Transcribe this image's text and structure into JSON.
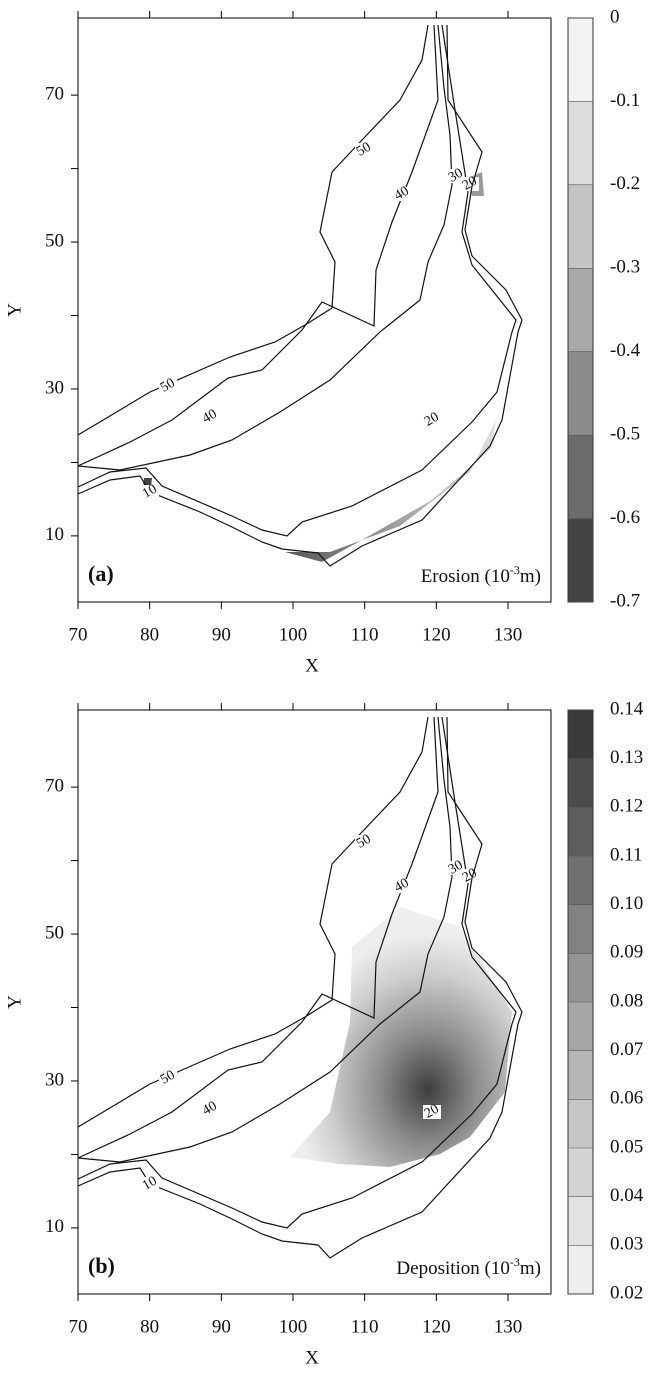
{
  "chart_data": [
    {
      "type": "contour",
      "panel_label": "(a)",
      "annotation": {
        "text": "Erosion (10",
        "sup": "-3",
        "unit": "m)"
      },
      "xlabel": "X",
      "ylabel": "Y",
      "xlim": [
        70,
        136
      ],
      "ylim": [
        1,
        80.5
      ],
      "xticks": [
        70,
        80,
        90,
        100,
        110,
        120,
        130
      ],
      "yticks": [
        10,
        30,
        50,
        70
      ],
      "yminorticks": [
        20,
        40,
        60
      ],
      "contour_levels": [
        50,
        40,
        30,
        20,
        10
      ],
      "shading": "erosion",
      "colorbar": {
        "ticks": [
          0,
          -0.1,
          -0.2,
          -0.3,
          -0.4,
          -0.5,
          -0.6,
          -0.7
        ],
        "colors": [
          "#f2f2f2",
          "#dcdcdc",
          "#c4c4c4",
          "#a9a9a9",
          "#8c8c8c",
          "#6c6c6c",
          "#444444"
        ]
      }
    },
    {
      "type": "contour",
      "panel_label": "(b)",
      "annotation": {
        "text": "Deposition (10",
        "sup": "-3",
        "unit": "m)"
      },
      "xlabel": "X",
      "ylabel": "Y",
      "xlim": [
        70,
        136
      ],
      "ylim": [
        1,
        80.5
      ],
      "xticks": [
        70,
        80,
        90,
        100,
        110,
        120,
        130
      ],
      "yticks": [
        10,
        30,
        50,
        70
      ],
      "yminorticks": [
        20,
        40,
        60
      ],
      "contour_levels": [
        50,
        40,
        30,
        20,
        10
      ],
      "shading": "deposition",
      "colorbar": {
        "ticks": [
          0.14,
          0.13,
          0.12,
          0.11,
          {
            "value": 0.1,
            "label": "0.10"
          },
          0.09,
          0.08,
          0.07,
          0.06,
          0.05,
          0.04,
          0.03,
          0.02
        ],
        "colors": [
          "#3a3a3a",
          "#4c4c4c",
          "#5e5e5e",
          "#707070",
          "#828282",
          "#949494",
          "#a6a6a6",
          "#b6b6b6",
          "#c6c6c6",
          "#d4d4d4",
          "#e2e2e2",
          "#efefef"
        ]
      }
    }
  ]
}
